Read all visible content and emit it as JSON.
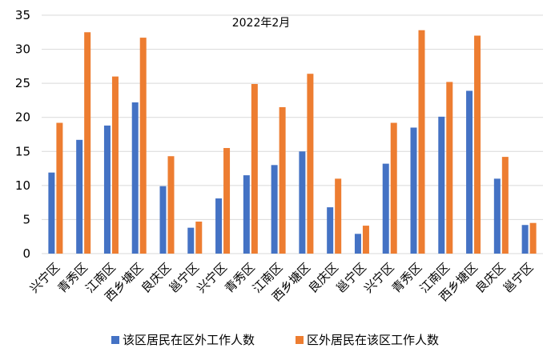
{
  "chart_data": {
    "type": "bar",
    "title": "2022年2月",
    "xlabel": "",
    "ylabel": "",
    "ylim": [
      0,
      35
    ],
    "yticks": [
      "0",
      "5",
      "10",
      "15",
      "20",
      "25",
      "30",
      "35"
    ],
    "grid": true,
    "legend_position": "bottom",
    "categories": [
      "兴宁区",
      "青秀区",
      "江南区",
      "西乡塘区",
      "良庆区",
      "邕宁区",
      "兴宁区",
      "青秀区",
      "江南区",
      "西乡塘区",
      "良庆区",
      "邕宁区",
      "兴宁区",
      "青秀区",
      "江南区",
      "西乡塘区",
      "良庆区",
      "邕宁区"
    ],
    "series": [
      {
        "name": "该区居民在区外工作人数",
        "color": "#4472C4",
        "values": [
          11.9,
          16.7,
          18.8,
          22.2,
          9.9,
          3.8,
          8.1,
          11.5,
          13.0,
          15.0,
          6.8,
          2.9,
          13.2,
          18.5,
          20.1,
          23.9,
          11.0,
          4.2
        ]
      },
      {
        "name": "区外居民在该区工作人数",
        "color": "#ED7D31",
        "values": [
          19.2,
          32.5,
          26.0,
          31.7,
          14.3,
          4.7,
          15.5,
          24.9,
          21.5,
          26.4,
          11.0,
          4.1,
          19.2,
          32.8,
          25.2,
          32.0,
          14.2,
          4.5
        ]
      }
    ]
  }
}
